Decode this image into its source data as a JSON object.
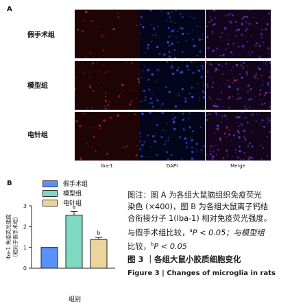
{
  "panel_a": {
    "letter": "A",
    "rows": [
      "假手术组",
      "模型组",
      "电针组"
    ],
    "columns": [
      "Iba-1",
      "DAPI",
      "Merge"
    ]
  },
  "panel_b": {
    "letter": "B"
  },
  "chart_data": {
    "type": "bar",
    "categories": [
      "假手术组",
      "模型组",
      "电针组"
    ],
    "series": [
      {
        "name": "假手术组",
        "values": [
          1.0,
          null,
          null
        ],
        "color": "#5b8ff9"
      },
      {
        "name": "模型组",
        "values": [
          null,
          2.55,
          null
        ],
        "color": "#7fd8c1"
      },
      {
        "name": "电针组",
        "values": [
          null,
          null,
          1.38
        ],
        "color": "#ecd49a"
      }
    ],
    "values": [
      1.0,
      2.55,
      1.38
    ],
    "errors": [
      0,
      0.17,
      0.1
    ],
    "annotations": [
      "",
      "a",
      "b"
    ],
    "ylabel": "Iba-1 免疫荧光强度（相对于假手术组）",
    "xlabel": "组别",
    "ylim": [
      0,
      3
    ],
    "yticks": [
      0,
      1,
      2,
      3
    ],
    "legend_position": "top"
  },
  "caption": {
    "line1": "图注：图 A 为各组大鼠脑组织免疫荧光",
    "line2": "染色 (×400)，图 B 为各组大鼠离子钙结",
    "line3": "合衔接分子 1(Iba-1) 相对免疫荧光强度。",
    "line4_pre": "与假手术组比较，",
    "sup_a": "a",
    "line4_mid": "P < 0.05；与模型组",
    "line5_pre": "比较，",
    "sup_b": "b",
    "line5_post": "P < 0.05",
    "figure_title_cn": "图 3 ｜各组大鼠小胶质细胞变化",
    "figure_title_en": "Figure 3  |  Changes of microglia in rats"
  }
}
